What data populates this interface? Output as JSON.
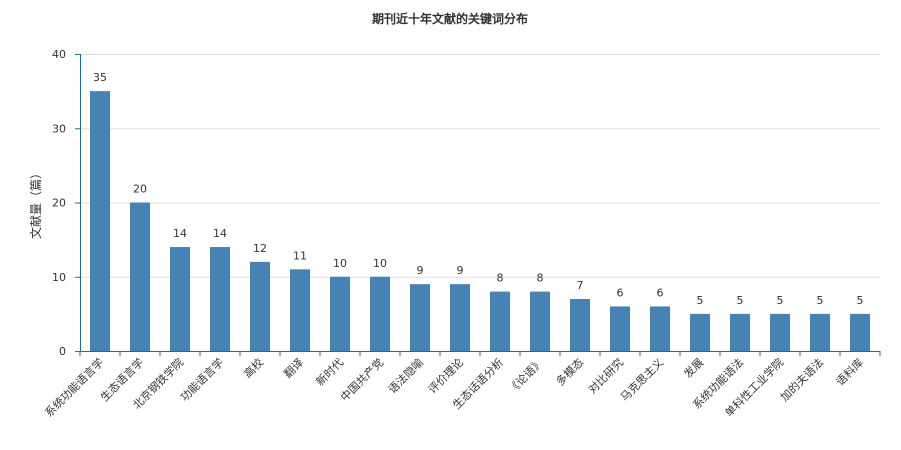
{
  "chart_data": {
    "type": "bar",
    "title": "期刊近十年文献的关键词分布",
    "xlabel": "",
    "ylabel": "文献量（篇）",
    "ylim": [
      0,
      40
    ],
    "yticks": [
      0,
      10,
      20,
      30,
      40
    ],
    "grid": true,
    "legend": "none",
    "categories": [
      "系统功能语言学",
      "生态语言学",
      "北京钢铁学院",
      "功能语言学",
      "高校",
      "翻译",
      "新时代",
      "中国共产党",
      "语法隐喻",
      "评价理论",
      "生态话语分析",
      "《论语》",
      "多模态",
      "对比研究",
      "马克思主义",
      "发展",
      "系统功能语法",
      "单科性工业学院",
      "加的夫语法",
      "语料库"
    ],
    "values": [
      35,
      20,
      14,
      14,
      12,
      11,
      10,
      10,
      9,
      9,
      8,
      8,
      7,
      6,
      6,
      5,
      5,
      5,
      5,
      5
    ],
    "colors": {
      "bar": "#4682b4",
      "axis": "#1e6f8f",
      "grid": "#dddddd",
      "text": "#333333"
    }
  }
}
